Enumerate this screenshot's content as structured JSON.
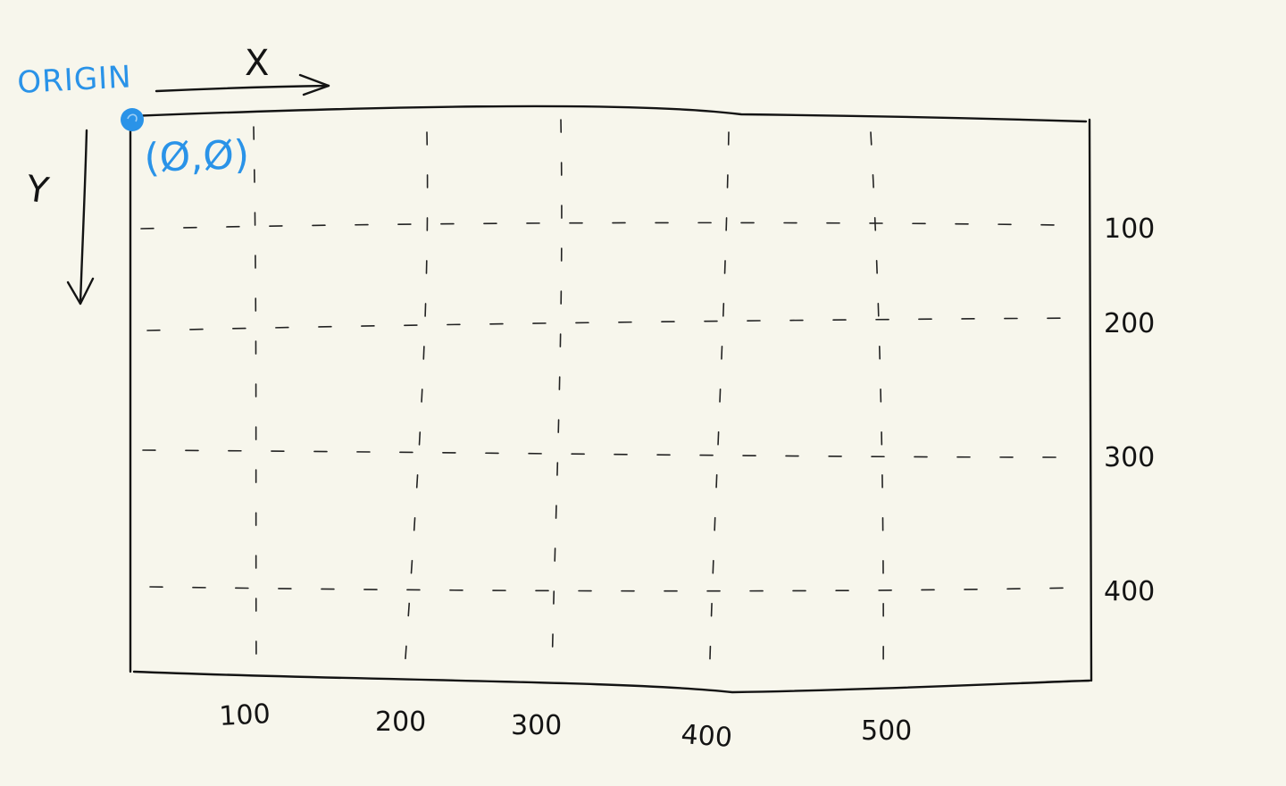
{
  "origin": {
    "label": "ORIGIN",
    "coords": "(Ø,Ø)"
  },
  "axes": {
    "x_label": "X",
    "y_label": "Y",
    "x_ticks": [
      "100",
      "200",
      "300",
      "400",
      "500"
    ],
    "y_ticks": [
      "100",
      "200",
      "300",
      "400"
    ]
  },
  "colors": {
    "background": "#f7f6ec",
    "ink": "#141414",
    "highlight": "#2a93e8"
  }
}
